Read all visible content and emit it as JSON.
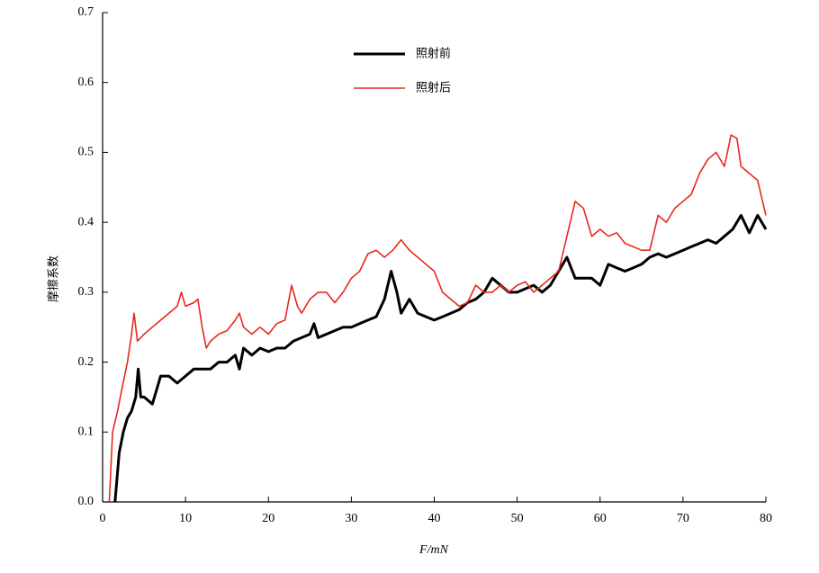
{
  "chart_data": {
    "type": "line",
    "x_label": "F/mN",
    "y_label": "摩擦系数",
    "xlim": [
      0,
      80
    ],
    "xticks": [
      0,
      10,
      20,
      30,
      40,
      50,
      60,
      70,
      80
    ],
    "ylim": [
      0,
      0.7
    ],
    "yticks": [
      {
        "value": 0,
        "label": "0.0"
      },
      0.1,
      0.2,
      0.3,
      0.4,
      0.5,
      0.6,
      0.7
    ],
    "grid": false,
    "series": [
      {
        "name": "照射前",
        "color": "#000000",
        "x": [
          1.5,
          2,
          2.5,
          3,
          3.5,
          4,
          4.3,
          4.6,
          5,
          6,
          6.5,
          7,
          8,
          9,
          10,
          11,
          12,
          13,
          14,
          15,
          16,
          16.5,
          17,
          18,
          19,
          20,
          21,
          22,
          23,
          24,
          25,
          25.5,
          26,
          27,
          28,
          29,
          30,
          31,
          32,
          33,
          34,
          34.8,
          35.5,
          36,
          37,
          38,
          39,
          40,
          41,
          42,
          43,
          44,
          45,
          46,
          47,
          48,
          49,
          50,
          51,
          52,
          53,
          54,
          55,
          56,
          57,
          58,
          59,
          60,
          61,
          62,
          63,
          64,
          65,
          66,
          67,
          68,
          69,
          70,
          71,
          72,
          73,
          74,
          75,
          76,
          77,
          78,
          79,
          80
        ],
        "values": [
          0.0,
          0.07,
          0.1,
          0.12,
          0.13,
          0.15,
          0.19,
          0.15,
          0.15,
          0.14,
          0.16,
          0.18,
          0.18,
          0.17,
          0.18,
          0.19,
          0.19,
          0.19,
          0.2,
          0.2,
          0.21,
          0.19,
          0.22,
          0.21,
          0.22,
          0.215,
          0.22,
          0.22,
          0.23,
          0.235,
          0.24,
          0.255,
          0.235,
          0.24,
          0.245,
          0.25,
          0.25,
          0.255,
          0.26,
          0.265,
          0.29,
          0.33,
          0.3,
          0.27,
          0.29,
          0.27,
          0.265,
          0.26,
          0.265,
          0.27,
          0.275,
          0.285,
          0.29,
          0.3,
          0.32,
          0.31,
          0.3,
          0.3,
          0.305,
          0.31,
          0.3,
          0.31,
          0.33,
          0.35,
          0.32,
          0.32,
          0.32,
          0.31,
          0.34,
          0.335,
          0.33,
          0.335,
          0.34,
          0.35,
          0.355,
          0.35,
          0.355,
          0.36,
          0.365,
          0.37,
          0.375,
          0.37,
          0.38,
          0.39,
          0.41,
          0.385,
          0.41,
          0.39
        ]
      },
      {
        "name": "照射后",
        "color": "#e8281e",
        "x": [
          0.8,
          1.2,
          1.8,
          2.3,
          3,
          3.5,
          3.8,
          4.2,
          5,
          6,
          7,
          8,
          9,
          9.5,
          10,
          11,
          11.5,
          12,
          12.5,
          13,
          14,
          15,
          16,
          16.5,
          17,
          18,
          19,
          20,
          21,
          22,
          22.8,
          23.5,
          24,
          25,
          26,
          27,
          28,
          29,
          30,
          31,
          32,
          33,
          34,
          35,
          36,
          37,
          38,
          39,
          40,
          41,
          42,
          43,
          44,
          45,
          46,
          47,
          48,
          49,
          50,
          51,
          52,
          53,
          54,
          55,
          56,
          57,
          58,
          59,
          60,
          61,
          62,
          63,
          64,
          65,
          66,
          67,
          68,
          69,
          70,
          71,
          72,
          73,
          74,
          75,
          75.8,
          76.5,
          77,
          78,
          79,
          80
        ],
        "values": [
          0.0,
          0.1,
          0.13,
          0.16,
          0.2,
          0.24,
          0.27,
          0.23,
          0.24,
          0.25,
          0.26,
          0.27,
          0.28,
          0.3,
          0.28,
          0.285,
          0.29,
          0.25,
          0.22,
          0.23,
          0.24,
          0.245,
          0.26,
          0.27,
          0.25,
          0.24,
          0.25,
          0.24,
          0.255,
          0.26,
          0.31,
          0.28,
          0.27,
          0.29,
          0.3,
          0.3,
          0.285,
          0.3,
          0.32,
          0.33,
          0.355,
          0.36,
          0.35,
          0.36,
          0.375,
          0.36,
          0.35,
          0.34,
          0.33,
          0.3,
          0.29,
          0.28,
          0.285,
          0.31,
          0.3,
          0.3,
          0.31,
          0.3,
          0.31,
          0.315,
          0.3,
          0.31,
          0.32,
          0.33,
          0.38,
          0.43,
          0.42,
          0.38,
          0.39,
          0.38,
          0.385,
          0.37,
          0.365,
          0.36,
          0.36,
          0.41,
          0.4,
          0.42,
          0.43,
          0.44,
          0.47,
          0.49,
          0.5,
          0.48,
          0.525,
          0.52,
          0.48,
          0.47,
          0.46,
          0.41
        ]
      }
    ]
  }
}
